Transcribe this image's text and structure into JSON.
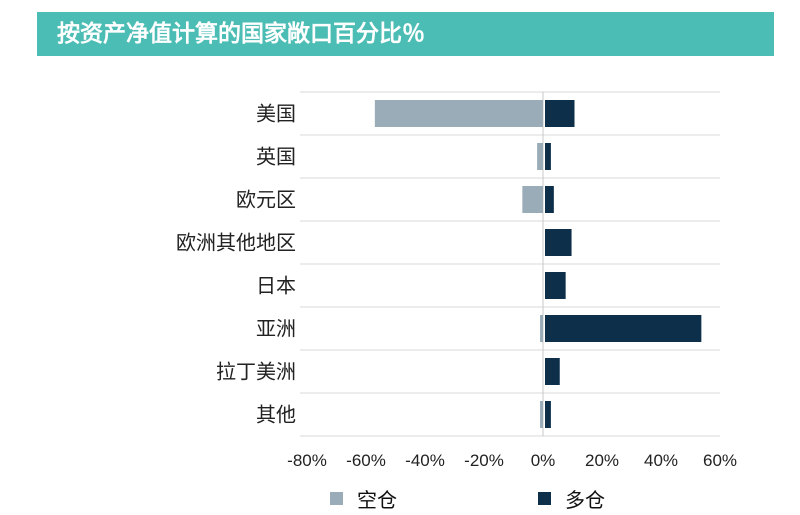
{
  "title": "按资产净值计算的国家敞口百分比％",
  "colors": {
    "title_bg": "#4bbdb4",
    "short": "#9aacb8",
    "long": "#0d2f4a",
    "grid": "#d8d8d8"
  },
  "legend": {
    "short_label": "空仓",
    "long_label": "多仓"
  },
  "chart_data": {
    "type": "bar",
    "orientation": "horizontal",
    "title": "按资产净值计算的国家敞口百分比％",
    "categories": [
      "美国",
      "英国",
      "欧元区",
      "欧洲其他地区",
      "日本",
      "亚洲",
      "拉丁美洲",
      "其他"
    ],
    "series": [
      {
        "name": "空仓",
        "values": [
          -57,
          -2,
          -7,
          0,
          0,
          -1,
          0,
          -1
        ]
      },
      {
        "name": "多仓",
        "values": [
          10,
          2,
          3,
          9,
          7,
          53,
          5,
          2
        ]
      }
    ],
    "xlim": [
      -80,
      60
    ],
    "xticks": [
      "-80%",
      "-60%",
      "-40%",
      "-20%",
      "0%",
      "20%",
      "40%",
      "60%"
    ],
    "legend_position": "bottom",
    "grid": true
  }
}
